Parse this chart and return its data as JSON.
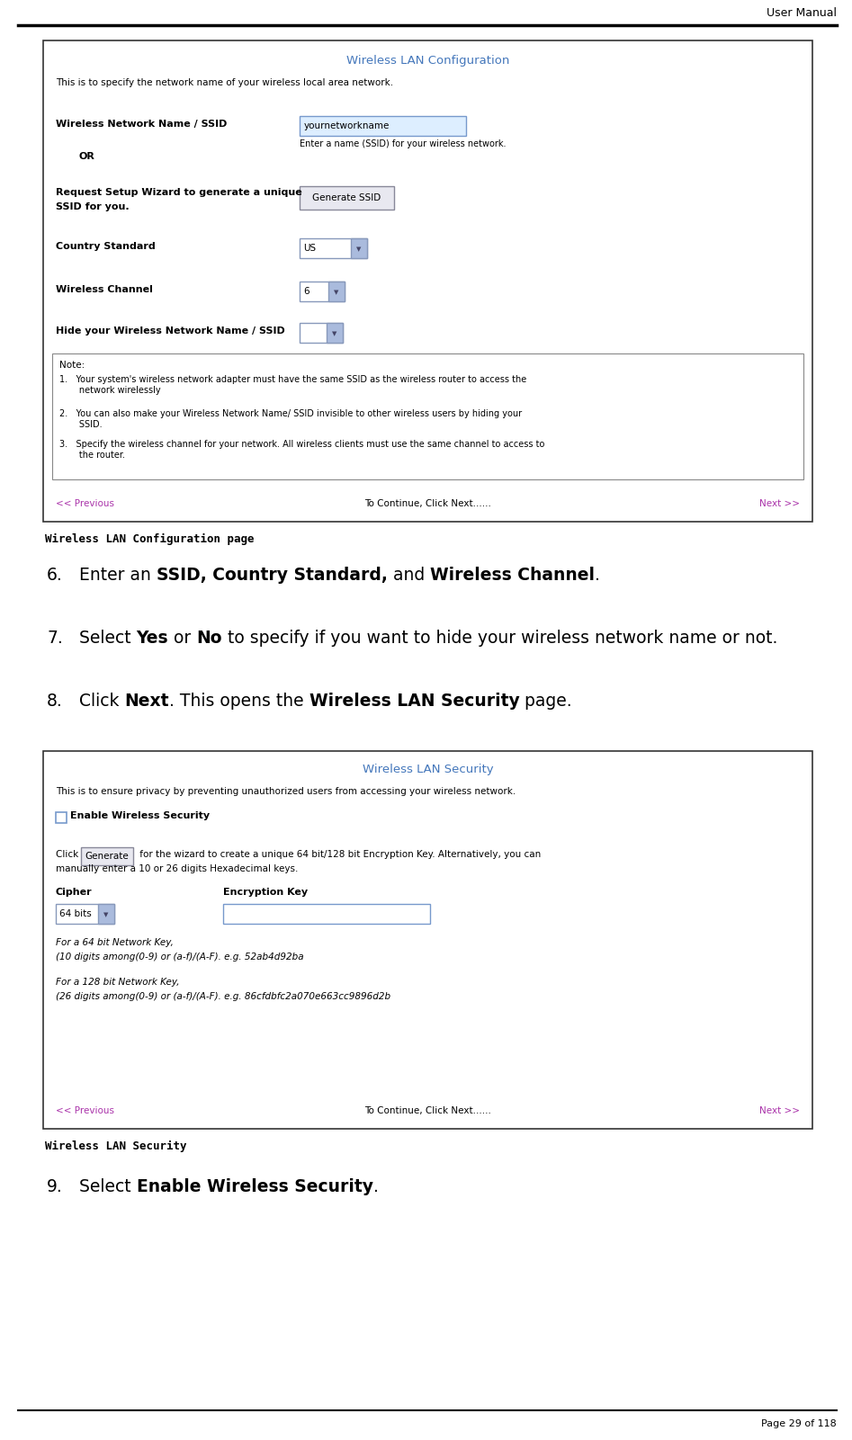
{
  "page_title": "User Manual",
  "page_number": "Page 29 of 118",
  "bg_color": "#ffffff",
  "box1_title": "Wireless LAN Configuration",
  "box1_title_color": "#4477bb",
  "box1_subtitle": "This is to specify the network name of your wireless local area network.",
  "box1_ssid_label": "Wireless Network Name / SSID",
  "box1_ssid_value": "yournetworkname",
  "box1_ssid_hint": "Enter a name (SSID) for your wireless network.",
  "box1_or": "OR",
  "box1_wizard_label1": "Request Setup Wizard to generate a unique",
  "box1_wizard_label2": "SSID for you.",
  "box1_gen_btn": "Generate SSID",
  "box1_country_label": "Country Standard",
  "box1_country_value": "US",
  "box1_channel_label": "Wireless Channel",
  "box1_channel_value": "6",
  "box1_hide_label": "Hide your Wireless Network Name / SSID",
  "box1_note_header": "Note:",
  "box1_note1": "1.   Your system's wireless network adapter must have the same SSID as the wireless router to access the\n       network wirelessly",
  "box1_note2": "2.   You can also make your Wireless Network Name/ SSID invisible to other wireless users by hiding your\n       SSID.",
  "box1_note3": "3.   Specify the wireless channel for your network. All wireless clients must use the same channel to access to\n       the router.",
  "box1_nav_left": "<< Previous",
  "box1_nav_mid": "To Continue, Click Next......",
  "box1_nav_right": "Next >>",
  "caption1": "Wireless LAN Configuration page",
  "step6_pre": "Enter an ",
  "step6_bold1": "SSID, Country Standard,",
  "step6_mid": " and ",
  "step6_bold2": "Wireless Channel",
  "step6_post": ".",
  "step7_pre": "Select ",
  "step7_bold1": "Yes",
  "step7_mid1": " or ",
  "step7_bold2": "No",
  "step7_post": " to specify if you want to hide your wireless network name or not.",
  "step8_pre": "Click ",
  "step8_bold1": "Next",
  "step8_mid": ". This opens the ",
  "step8_bold2": "Wireless LAN Security",
  "step8_post": " page.",
  "box2_title": "Wireless LAN Security",
  "box2_title_color": "#4477bb",
  "box2_subtitle": "This is to ensure privacy by preventing unauthorized users from accessing your wireless network.",
  "box2_checkbox": "Enable Wireless Security",
  "box2_click_pre": "Click ",
  "box2_gen_btn": "Generate",
  "box2_click_post": " for the wizard to create a unique 64 bit/128 bit Encryption Key. Alternatively, you can",
  "box2_click_post2": "manually enter a 10 or 26 digits Hexadecimal keys.",
  "box2_cipher_label": "Cipher",
  "box2_enc_label": "Encryption Key",
  "box2_cipher_value": "64 bits",
  "box2_note1a": "For a 64 bit Network Key,",
  "box2_note1b": "(10 digits among(0-9) or (a-f)/(A-F). e.g. 52ab4d92ba",
  "box2_note2a": "For a 128 bit Network Key,",
  "box2_note2b": "(26 digits among(0-9) or (a-f)/(A-F). e.g. 86cfdbfc2a070e663cc9896d2b",
  "box2_nav_left": "<< Previous",
  "box2_nav_mid": "To Continue, Click Next......",
  "box2_nav_right": "Next >>",
  "caption2": "Wireless LAN Security",
  "step9_pre": "Select ",
  "step9_bold": "Enable Wireless Security",
  "step9_post": ".",
  "nav_color": "#aa33aa",
  "link_color": "#aa33aa"
}
